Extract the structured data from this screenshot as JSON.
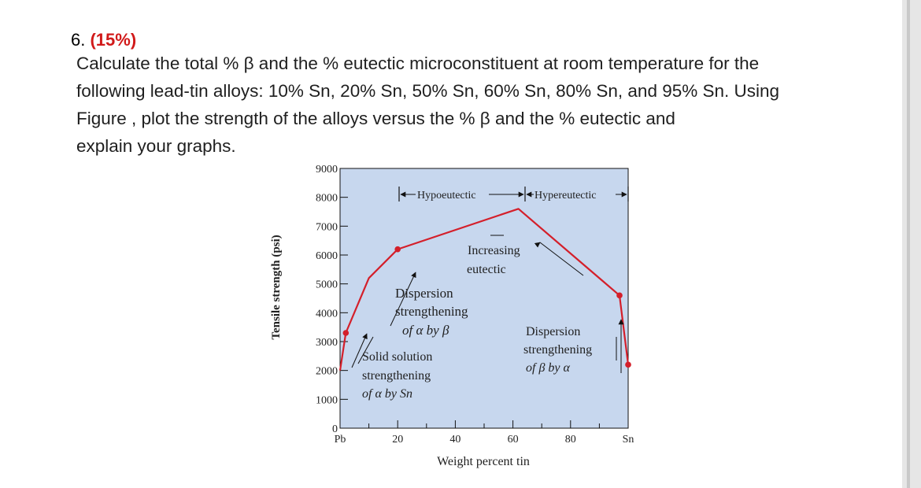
{
  "question": {
    "number": "6.",
    "points": "(15%)",
    "lines": [
      "Calculate the total % β and the % eutectic microconstituent at room temperature for the",
      "following lead-tin alloys: 10% Sn, 20% Sn, 50% Sn, 60% Sn, 80% Sn, and 95% Sn. Using",
      "Figure , plot the strength of the alloys versus the % β and the % eutectic and",
      "explain your graphs."
    ]
  },
  "colors": {
    "plot_background": "#c7d7ee",
    "curve": "#d41f2a",
    "text": "#1f1f1f",
    "points_label": "#d11a1a"
  },
  "chart_data": {
    "type": "line",
    "xlabel": "Weight percent tin",
    "ylabel": "Tensile strength (psi)",
    "xlim": [
      0,
      100
    ],
    "ylim": [
      0,
      9000
    ],
    "x_ticks": [
      "Pb",
      "20",
      "40",
      "60",
      "80",
      "Sn"
    ],
    "y_ticks": [
      "0",
      "1000",
      "2000",
      "3000",
      "4000",
      "5000",
      "6000",
      "7000",
      "8000",
      "9000"
    ],
    "series": [
      {
        "x": [
          0,
          2,
          10,
          20,
          61.9,
          97,
          100
        ],
        "y": [
          2000,
          3300,
          5200,
          6200,
          7600,
          4600,
          2200
        ]
      }
    ],
    "markers": {
      "x": [
        2,
        20,
        97,
        100
      ],
      "y": [
        3300,
        6200,
        4600,
        2200
      ]
    },
    "annotations": {
      "hypoeutectic": "Hypoeutectic",
      "hypereutectic": "Hypereutectic",
      "increasing": "Increasing",
      "eutectic": "eutectic",
      "dispersion_left_1": "Dispersion",
      "dispersion_left_2": "strengthening",
      "dispersion_left_3": "of α by β",
      "solid_solution_1": "Solid solution",
      "solid_solution_2": "strengthening",
      "solid_solution_3": "of α by Sn",
      "dispersion_right_1": "Dispersion",
      "dispersion_right_2": "strengthening",
      "dispersion_right_3": "of β by α"
    }
  }
}
